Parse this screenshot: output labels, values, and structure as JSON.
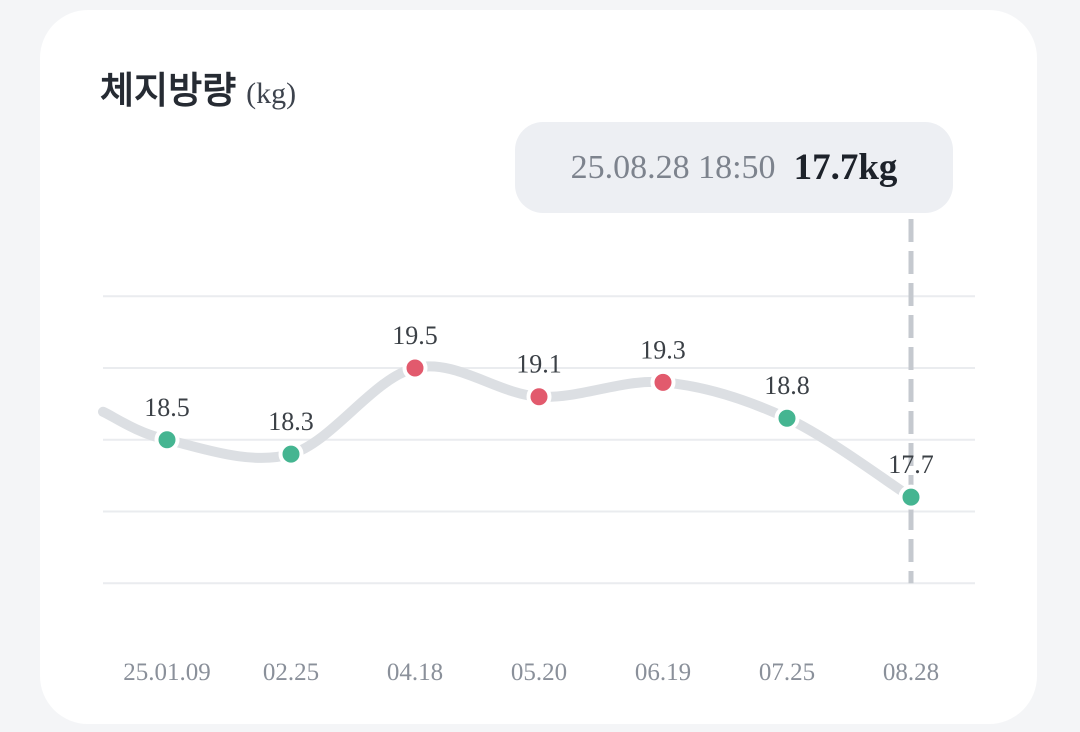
{
  "page": {
    "background": "#f4f5f7",
    "card_background": "#ffffff"
  },
  "header": {
    "title": "체지방량",
    "unit": "(kg)"
  },
  "tooltip": {
    "datetime": "25.08.28 18:50",
    "value": "17.7kg"
  },
  "chart_data": {
    "type": "line",
    "title": "체지방량 (kg)",
    "x": [
      "25.01.09",
      "02.25",
      "04.18",
      "05.20",
      "06.19",
      "07.25",
      "08.28"
    ],
    "values": [
      18.5,
      18.3,
      19.5,
      19.1,
      19.3,
      18.8,
      17.7
    ],
    "point_labels": [
      "18.5",
      "18.3",
      "19.5",
      "19.1",
      "19.3",
      "18.8",
      "17.7"
    ],
    "point_colors": [
      "green",
      "green",
      "red",
      "red",
      "red",
      "green",
      "green"
    ],
    "selected_index": 6,
    "selected_point": {
      "date": "25.08.28",
      "time": "18:50",
      "value_kg": 17.7
    },
    "ylim": [
      16.5,
      20.5
    ],
    "gridline_values": [
      20.5,
      19.5,
      18.5,
      17.5,
      16.5
    ],
    "grid_on": true,
    "legend": "none",
    "colors": {
      "green": "#45b591",
      "red": "#e25a6d",
      "line": "#dcdfe3",
      "grid": "#eaecef",
      "dash": "#c5c9cf",
      "point_ring": "#ffffff",
      "value_label": "#3b4046",
      "x_label": "#8a909a"
    }
  }
}
